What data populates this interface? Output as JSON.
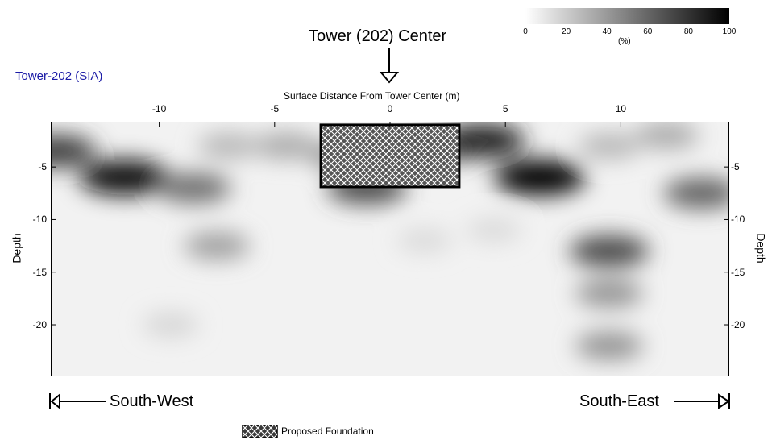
{
  "chart_data": {
    "type": "heatmap",
    "title": "Tower (202) Center",
    "subtitle": "Tower-202 (SIA)",
    "xlabel": "Surface Distance From Tower Center (m)",
    "ylabel": "Depth",
    "ylabel_right": "Depth",
    "x_range": [
      -14.7,
      14.7
    ],
    "y_range": [
      -0.7,
      -24.9
    ],
    "x_ticks": [
      "-10",
      "-5",
      "0",
      "5",
      "10"
    ],
    "x_tick_values": [
      -10,
      -5,
      0,
      5,
      10
    ],
    "y_ticks": [
      "-5",
      "-10",
      "-15",
      "-20"
    ],
    "y_tick_values": [
      -5,
      -10,
      -15,
      -20
    ],
    "colorbar": {
      "unit": "(%)",
      "ticks": [
        "0",
        "20",
        "40",
        "60",
        "80",
        "100"
      ],
      "tick_values": [
        0,
        20,
        40,
        60,
        80,
        100
      ],
      "color_low": "#ffffff",
      "color_high": "#000000"
    },
    "foundation": {
      "x_range": [
        -3,
        3
      ],
      "depth_range": [
        -1,
        -6.9
      ],
      "pattern": "crosshatch"
    },
    "anomalies": [
      {
        "x": -14.5,
        "depth": -3.5,
        "intensity": 75
      },
      {
        "x": -11.5,
        "depth": -6.0,
        "intensity": 95
      },
      {
        "x": -8.5,
        "depth": -7.0,
        "intensity": 55
      },
      {
        "x": -7.5,
        "depth": -12.5,
        "intensity": 35
      },
      {
        "x": -7.0,
        "depth": -3.0,
        "intensity": 25
      },
      {
        "x": -4.5,
        "depth": -3.0,
        "intensity": 30
      },
      {
        "x": -1.0,
        "depth": -7.0,
        "intensity": 70
      },
      {
        "x": -2.0,
        "depth": -4.0,
        "intensity": 40
      },
      {
        "x": 2.5,
        "depth": -3.0,
        "intensity": 60
      },
      {
        "x": 4.0,
        "depth": -2.5,
        "intensity": 85
      },
      {
        "x": 6.5,
        "depth": -6.0,
        "intensity": 98
      },
      {
        "x": 9.5,
        "depth": -13.0,
        "intensity": 70
      },
      {
        "x": 9.5,
        "depth": -17.0,
        "intensity": 40
      },
      {
        "x": 9.5,
        "depth": -22.0,
        "intensity": 40
      },
      {
        "x": 9.5,
        "depth": -3.0,
        "intensity": 25
      },
      {
        "x": 12.0,
        "depth": -2.0,
        "intensity": 30
      },
      {
        "x": 13.5,
        "depth": -7.5,
        "intensity": 60
      },
      {
        "x": -9.5,
        "depth": -20.0,
        "intensity": 12
      },
      {
        "x": 1.5,
        "depth": -12.0,
        "intensity": 10
      },
      {
        "x": 4.5,
        "depth": -11.0,
        "intensity": 10
      }
    ],
    "legend": [
      {
        "label": "Proposed Foundation",
        "pattern": "crosshatch"
      }
    ]
  },
  "annotations": {
    "left_direction": "South-West",
    "right_direction": "South-East"
  }
}
